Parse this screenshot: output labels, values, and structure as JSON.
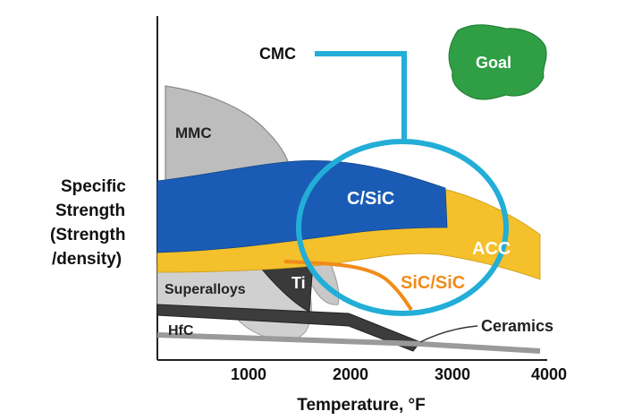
{
  "colors": {
    "mmc": "#bdbdbd",
    "cc_blue": "#1a5cb5",
    "acc_yellow": "#f4c02b",
    "cmc_cyan": "#22aed6",
    "sic_orange": "#f08c1a",
    "goal_green": "#2f9e44",
    "ti_dark": "#3a3a3a",
    "superalloy_gray": "#d0d0d0",
    "hfc_dark": "#3c3c3c",
    "ceramics_gray": "#9a9a9a"
  },
  "y_axis": {
    "label_lines": [
      "Specific",
      "Strength",
      "(Strength",
      "/density)"
    ]
  },
  "x_axis": {
    "label": "Temperature, °F",
    "ticks": [
      "1000",
      "2000",
      "3000",
      "4000"
    ]
  },
  "regions": {
    "mmc": "MMC",
    "c_sic": "C/SiC",
    "acc": "ACC",
    "sic_sic": "SiC/SiC",
    "superalloys": "Superalloys",
    "ti": "Ti",
    "hfc": "HfC",
    "ceramics": "Ceramics",
    "cmc": "CMC",
    "goal": "Goal"
  }
}
